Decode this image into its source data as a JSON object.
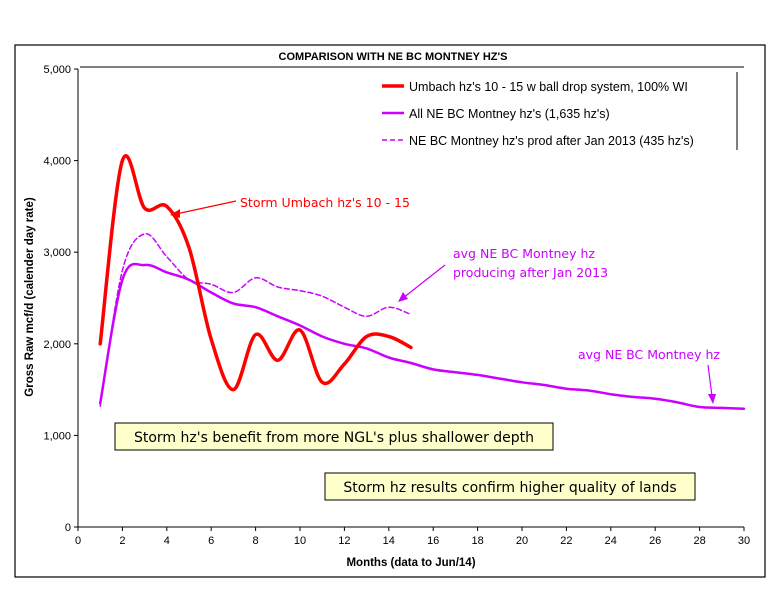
{
  "chart_data": {
    "type": "line",
    "title": "COMPARISON WITH NE BC MONTNEY HZ'S",
    "xlabel": "Months (data to Jun/14)",
    "ylabel": "Gross Raw mcf/d (calender day rate)",
    "xlim": [
      0,
      30
    ],
    "ylim": [
      0,
      5000
    ],
    "x_ticks": [
      0,
      2,
      4,
      6,
      8,
      10,
      12,
      14,
      16,
      18,
      20,
      22,
      24,
      26,
      28,
      30
    ],
    "y_ticks": [
      0,
      1000,
      2000,
      3000,
      4000,
      5000
    ],
    "y_tick_labels": [
      "0",
      "1,000",
      "2,000",
      "3,000",
      "4,000",
      "5,000"
    ],
    "grid": false,
    "legend_position": "top-right",
    "series": [
      {
        "name": "Umbach hz's 10 - 15 w ball drop system, 100% WI",
        "color": "#ff0000",
        "style": "solid-thick",
        "x": [
          1,
          2,
          3,
          4,
          5,
          6,
          7,
          8,
          9,
          10,
          11,
          12,
          13,
          14,
          15
        ],
        "y": [
          2000,
          4000,
          3480,
          3500,
          3050,
          2050,
          1500,
          2100,
          1820,
          2150,
          1580,
          1780,
          2080,
          2080,
          1960
        ]
      },
      {
        "name": "All NE BC Montney hz's (1,635 hz's)",
        "color": "#cc00ff",
        "style": "solid",
        "x": [
          1,
          2,
          3,
          4,
          5,
          6,
          7,
          8,
          9,
          10,
          11,
          12,
          13,
          14,
          15,
          16,
          17,
          18,
          19,
          20,
          21,
          22,
          23,
          24,
          25,
          26,
          27,
          28,
          29,
          30
        ],
        "y": [
          1350,
          2700,
          2860,
          2780,
          2700,
          2560,
          2440,
          2400,
          2300,
          2200,
          2080,
          2000,
          1950,
          1850,
          1790,
          1720,
          1690,
          1660,
          1620,
          1580,
          1550,
          1510,
          1490,
          1450,
          1420,
          1400,
          1360,
          1310,
          1300,
          1290
        ]
      },
      {
        "name": "NE BC Montney hz's prod after Jan 2013 (435 hz's)",
        "color": "#cc00ff",
        "style": "dashed",
        "x": [
          1,
          2,
          3,
          4,
          5,
          6,
          7,
          8,
          9,
          10,
          11,
          12,
          13,
          14,
          15
        ],
        "y": [
          1320,
          2800,
          3200,
          2950,
          2700,
          2650,
          2560,
          2720,
          2620,
          2580,
          2520,
          2400,
          2300,
          2400,
          2320
        ]
      }
    ],
    "annotations": [
      {
        "text": "Storm Umbach hz's 10 - 15",
        "color": "#ff0000"
      },
      {
        "lines": [
          "avg NE BC Montney hz",
          "producing after Jan 2013"
        ],
        "color": "#cc00ff"
      },
      {
        "text": "avg NE BC Montney hz",
        "color": "#cc00ff"
      }
    ],
    "boxes": [
      "Storm hz's benefit from more NGL's plus shallower depth",
      "Storm hz results confirm higher quality of lands"
    ]
  }
}
